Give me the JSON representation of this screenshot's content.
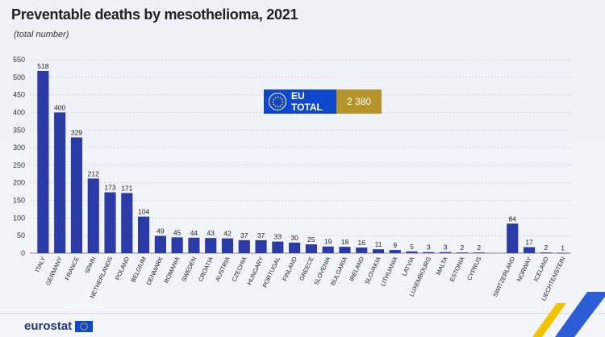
{
  "title": "Preventable deaths by mesothelioma, 2021",
  "subtitle": "(total number)",
  "eu_total": {
    "label": "EU TOTAL",
    "value": "2 380"
  },
  "logo": {
    "text": "eurostat"
  },
  "colors": {
    "bar": "#2a3ba8",
    "accent": "#b5942a",
    "eu_blue": "#0e47cb"
  },
  "chart_data": {
    "type": "bar",
    "title": "Preventable deaths by mesothelioma, 2021",
    "ylabel": "",
    "xlabel": "",
    "ylim": [
      0,
      550
    ],
    "yticks": [
      0,
      50,
      100,
      150,
      200,
      250,
      300,
      350,
      400,
      450,
      500,
      550
    ],
    "grid": true,
    "categories": [
      "ITALY",
      "GERMANY",
      "FRANCE",
      "SPAIN",
      "NETHERLANDS",
      "POLAND",
      "BELGIUM",
      "DENMARK",
      "ROMANIA",
      "SWEDEN",
      "CROATIA",
      "AUSTRIA",
      "CZECHIA",
      "HUNGARY",
      "PORTUGAL",
      "FINLAND",
      "GREECE",
      "SLOVENIA",
      "BULGARIA",
      "IRELAND",
      "SLOVAKIA",
      "LITHUANIA",
      "LATVIA",
      "LUXEMBOURG",
      "MALTA",
      "ESTONIA",
      "CYPRUS",
      "",
      "SWITZERLAND",
      "NORWAY",
      "ICELAND",
      "LIECHTENSTEIN"
    ],
    "values": [
      518,
      400,
      329,
      212,
      173,
      171,
      104,
      49,
      45,
      44,
      43,
      42,
      37,
      37,
      33,
      30,
      25,
      19,
      18,
      16,
      11,
      9,
      5,
      3,
      3,
      2,
      2,
      null,
      84,
      17,
      2,
      1
    ]
  }
}
